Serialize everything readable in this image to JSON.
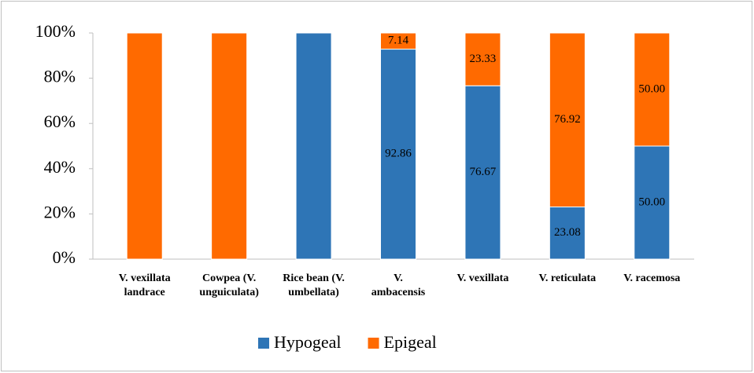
{
  "chart_data": {
    "type": "stacked_bar",
    "categories": [
      "V. vexillata\nlandrace",
      "Cowpea (V.\nunguiculata)",
      "Rice bean (V.\numbellata)",
      "V.\nambacensis",
      "V. vexillata",
      "V. reticulata",
      "V. racemosa"
    ],
    "series": [
      {
        "name": "Hypogeal",
        "color": "#2e75b6",
        "values": [
          0,
          0,
          100,
          92.86,
          76.67,
          23.08,
          50
        ],
        "value_labels": [
          null,
          null,
          null,
          "92.86",
          "76.67",
          "23.08",
          "50.00"
        ]
      },
      {
        "name": "Epigeal",
        "color": "#ff6a00",
        "values": [
          100,
          100,
          0,
          7.14,
          23.33,
          76.92,
          50
        ],
        "value_labels": [
          null,
          null,
          null,
          "7.14",
          "23.33",
          "76.92",
          "50.00"
        ]
      }
    ],
    "ylim": [
      0,
      100
    ],
    "yticks": [
      {
        "value": 0,
        "label": "0%"
      },
      {
        "value": 20,
        "label": "20%"
      },
      {
        "value": 40,
        "label": "40%"
      },
      {
        "value": 60,
        "label": "60%"
      },
      {
        "value": 80,
        "label": "80%"
      },
      {
        "value": 100,
        "label": "100%"
      }
    ],
    "legend": "bottom"
  }
}
